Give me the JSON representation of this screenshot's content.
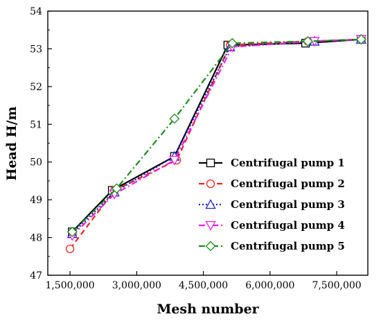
{
  "chart_data": {
    "type": "line",
    "xlabel": "Mesh number",
    "ylabel": "Head H/m",
    "xlim": [
      1000000,
      8200000
    ],
    "ylim": [
      47,
      54
    ],
    "x_ticks": [
      1500000,
      3000000,
      4500000,
      6000000,
      7500000
    ],
    "x_tick_labels": [
      "1,500,000",
      "3,000,000",
      "4,500,000",
      "6,000,000",
      "7,500,000"
    ],
    "y_ticks": [
      47,
      48,
      49,
      50,
      51,
      52,
      53,
      54
    ],
    "y_tick_labels": [
      "47",
      "48",
      "49",
      "50",
      "51",
      "52",
      "53",
      "54"
    ],
    "grid": false,
    "legend_position": "right",
    "series": [
      {
        "name": "Centrifugal pump 1",
        "color": "#000000",
        "dash": "solid",
        "marker": "square",
        "x": [
          1550000,
          2450000,
          3850000,
          5050000,
          6800000,
          8050000
        ],
        "y": [
          48.15,
          49.25,
          50.15,
          53.1,
          53.15,
          53.25
        ]
      },
      {
        "name": "Centrifugal pump 2",
        "color": "#e8231f",
        "dash": "dash",
        "marker": "circle",
        "x": [
          1500000,
          2500000,
          3900000,
          5100000,
          6850000,
          8050000
        ],
        "y": [
          47.7,
          49.25,
          50.05,
          53.1,
          53.2,
          53.25
        ]
      },
      {
        "name": "Centrifugal pump 3",
        "color": "#1f1fc4",
        "dash": "dot",
        "marker": "triangle-up",
        "x": [
          1550000,
          2500000,
          3850000,
          5100000,
          7000000,
          8050000
        ],
        "y": [
          48.1,
          49.2,
          50.15,
          53.05,
          53.2,
          53.25
        ]
      },
      {
        "name": "Centrifugal pump 4",
        "color": "#e61ee6",
        "dash": "dashdot",
        "marker": "triangle-down",
        "x": [
          1550000,
          2500000,
          3850000,
          5150000,
          7000000,
          8050000
        ],
        "y": [
          48.05,
          49.15,
          50.05,
          53.05,
          53.2,
          53.25
        ]
      },
      {
        "name": "Centrifugal pump 5",
        "color": "#1a8a1a",
        "dash": "dashdot",
        "marker": "diamond",
        "x": [
          1550000,
          2550000,
          3850000,
          5150000,
          6850000,
          8050000
        ],
        "y": [
          48.15,
          49.3,
          51.15,
          53.15,
          53.2,
          53.25
        ]
      }
    ]
  }
}
